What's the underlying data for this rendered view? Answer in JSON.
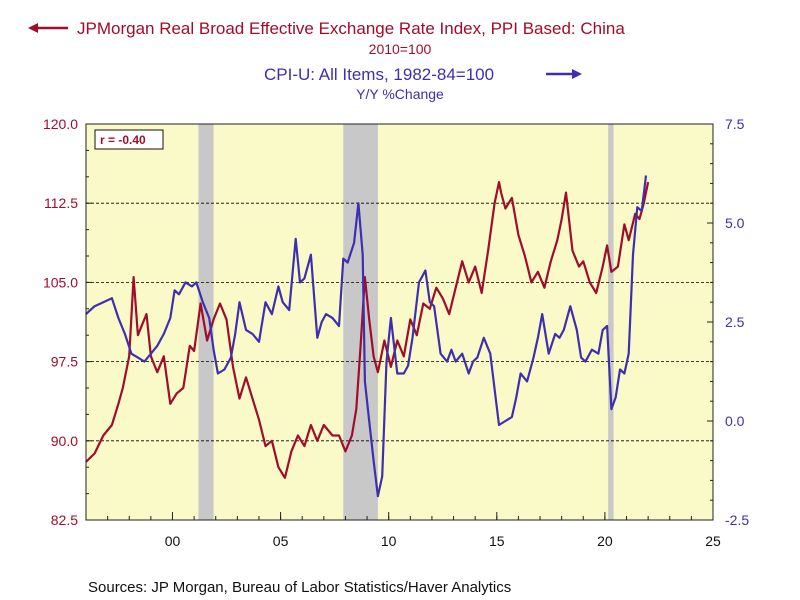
{
  "chart_data": {
    "type": "line",
    "title_left": "JPMorgan Real Broad Effective Exchange Rate Index, PPI Based: China",
    "subtitle_left": "2010=100",
    "title_right": "CPI-U: All Items, 1982-84=100",
    "subtitle_right": "Y/Y %Change",
    "correlation_label": "r = -0.40",
    "source": "Sources:  JP Morgan, Bureau of Labor Statistics/Haver Analytics",
    "x_axis": {
      "range": [
        1996,
        2025
      ],
      "ticks": [
        "00",
        "05",
        "10",
        "15",
        "20",
        "25"
      ],
      "tick_years": [
        2000,
        2005,
        2010,
        2015,
        2020,
        2025
      ]
    },
    "y_left": {
      "range": [
        82.5,
        120.0
      ],
      "ticks": [
        "82.5",
        "90.0",
        "97.5",
        "105.0",
        "112.5",
        "120.0"
      ]
    },
    "y_right": {
      "range": [
        -2.5,
        7.5
      ],
      "ticks": [
        "-2.5",
        "0.0",
        "2.5",
        "5.0",
        "7.5"
      ]
    },
    "gridlines_left": [
      90.0,
      97.5,
      105.0,
      112.5
    ],
    "recessions": [
      [
        2001.2,
        2001.9
      ],
      [
        2007.9,
        2009.5
      ],
      [
        2020.15,
        2020.4
      ]
    ],
    "colors": {
      "left_series": "#a00d2b",
      "right_series": "#3e2fb0",
      "plot_bg": "#fafac8",
      "recession": "#c8c8c8"
    },
    "series": [
      {
        "name": "JPMorgan Real Broad Effective Exchange Rate Index, PPI Based: China",
        "axis": "left",
        "points": [
          [
            1996.0,
            88.0
          ],
          [
            1996.4,
            88.8
          ],
          [
            1996.8,
            90.5
          ],
          [
            1997.2,
            91.5
          ],
          [
            1997.5,
            93.5
          ],
          [
            1997.7,
            95.0
          ],
          [
            1998.0,
            98.0
          ],
          [
            1998.2,
            105.5
          ],
          [
            1998.4,
            100.0
          ],
          [
            1998.6,
            101.0
          ],
          [
            1998.8,
            102.0
          ],
          [
            1999.0,
            98.0
          ],
          [
            1999.3,
            96.5
          ],
          [
            1999.6,
            98.0
          ],
          [
            1999.9,
            93.5
          ],
          [
            2000.2,
            94.5
          ],
          [
            2000.5,
            95.0
          ],
          [
            2000.8,
            99.0
          ],
          [
            2001.0,
            98.5
          ],
          [
            2001.3,
            103.0
          ],
          [
            2001.6,
            99.5
          ],
          [
            2001.9,
            101.5
          ],
          [
            2002.2,
            103.0
          ],
          [
            2002.5,
            101.5
          ],
          [
            2002.8,
            97.0
          ],
          [
            2003.1,
            94.0
          ],
          [
            2003.4,
            96.0
          ],
          [
            2003.7,
            94.0
          ],
          [
            2004.0,
            92.0
          ],
          [
            2004.3,
            89.5
          ],
          [
            2004.6,
            90.0
          ],
          [
            2004.9,
            87.5
          ],
          [
            2005.2,
            86.5
          ],
          [
            2005.5,
            89.0
          ],
          [
            2005.8,
            90.5
          ],
          [
            2006.1,
            89.5
          ],
          [
            2006.4,
            91.5
          ],
          [
            2006.7,
            90.0
          ],
          [
            2007.0,
            91.5
          ],
          [
            2007.4,
            90.5
          ],
          [
            2007.7,
            90.5
          ],
          [
            2008.0,
            89.0
          ],
          [
            2008.3,
            90.5
          ],
          [
            2008.5,
            93.0
          ],
          [
            2008.7,
            99.0
          ],
          [
            2008.9,
            105.5
          ],
          [
            2009.1,
            101.5
          ],
          [
            2009.3,
            98.0
          ],
          [
            2009.5,
            96.5
          ],
          [
            2009.8,
            99.5
          ],
          [
            2010.1,
            97.0
          ],
          [
            2010.4,
            99.5
          ],
          [
            2010.7,
            98.0
          ],
          [
            2011.0,
            101.5
          ],
          [
            2011.3,
            100.0
          ],
          [
            2011.6,
            103.0
          ],
          [
            2011.9,
            102.5
          ],
          [
            2012.2,
            104.5
          ],
          [
            2012.5,
            103.5
          ],
          [
            2012.8,
            102.0
          ],
          [
            2013.1,
            104.5
          ],
          [
            2013.4,
            107.0
          ],
          [
            2013.7,
            105.0
          ],
          [
            2014.0,
            106.5
          ],
          [
            2014.3,
            104.0
          ],
          [
            2014.6,
            108.0
          ],
          [
            2014.9,
            112.5
          ],
          [
            2015.1,
            114.5
          ],
          [
            2015.2,
            113.5
          ],
          [
            2015.4,
            112.0
          ],
          [
            2015.7,
            113.0
          ],
          [
            2016.0,
            109.5
          ],
          [
            2016.3,
            107.5
          ],
          [
            2016.6,
            105.0
          ],
          [
            2016.9,
            106.0
          ],
          [
            2017.2,
            104.5
          ],
          [
            2017.5,
            107.0
          ],
          [
            2017.8,
            109.0
          ],
          [
            2018.0,
            111.0
          ],
          [
            2018.2,
            113.5
          ],
          [
            2018.5,
            108.0
          ],
          [
            2018.8,
            106.5
          ],
          [
            2019.0,
            107.0
          ],
          [
            2019.3,
            105.0
          ],
          [
            2019.6,
            104.0
          ],
          [
            2019.9,
            106.5
          ],
          [
            2020.1,
            108.5
          ],
          [
            2020.3,
            106.0
          ],
          [
            2020.6,
            106.5
          ],
          [
            2020.9,
            110.5
          ],
          [
            2021.1,
            109.0
          ],
          [
            2021.4,
            111.5
          ],
          [
            2021.6,
            111.0
          ],
          [
            2021.8,
            112.5
          ],
          [
            2022.0,
            114.5
          ]
        ]
      },
      {
        "name": "CPI-U: All Items, 1982-84=100 Y/Y %Change",
        "axis": "right",
        "points": [
          [
            1996.0,
            2.7
          ],
          [
            1996.4,
            2.9
          ],
          [
            1996.8,
            3.0
          ],
          [
            1997.2,
            3.1
          ],
          [
            1997.5,
            2.6
          ],
          [
            1997.8,
            2.2
          ],
          [
            1998.1,
            1.7
          ],
          [
            1998.4,
            1.6
          ],
          [
            1998.7,
            1.5
          ],
          [
            1999.0,
            1.7
          ],
          [
            1999.3,
            1.9
          ],
          [
            1999.6,
            2.2
          ],
          [
            1999.9,
            2.6
          ],
          [
            2000.1,
            3.3
          ],
          [
            2000.3,
            3.2
          ],
          [
            2000.6,
            3.5
          ],
          [
            2000.9,
            3.4
          ],
          [
            2001.1,
            3.5
          ],
          [
            2001.4,
            3.0
          ],
          [
            2001.7,
            2.6
          ],
          [
            2001.9,
            1.8
          ],
          [
            2002.1,
            1.2
          ],
          [
            2002.4,
            1.3
          ],
          [
            2002.7,
            1.6
          ],
          [
            2002.9,
            2.2
          ],
          [
            2003.1,
            3.0
          ],
          [
            2003.4,
            2.3
          ],
          [
            2003.7,
            2.2
          ],
          [
            2004.0,
            2.0
          ],
          [
            2004.3,
            3.0
          ],
          [
            2004.6,
            2.7
          ],
          [
            2004.9,
            3.4
          ],
          [
            2005.1,
            3.0
          ],
          [
            2005.4,
            2.8
          ],
          [
            2005.7,
            4.6
          ],
          [
            2005.9,
            3.5
          ],
          [
            2006.1,
            3.6
          ],
          [
            2006.4,
            4.2
          ],
          [
            2006.7,
            2.1
          ],
          [
            2006.9,
            2.5
          ],
          [
            2007.1,
            2.7
          ],
          [
            2007.4,
            2.6
          ],
          [
            2007.7,
            2.4
          ],
          [
            2007.9,
            4.1
          ],
          [
            2008.1,
            4.0
          ],
          [
            2008.4,
            4.5
          ],
          [
            2008.6,
            5.5
          ],
          [
            2008.8,
            4.2
          ],
          [
            2008.9,
            1.0
          ],
          [
            2009.1,
            0.0
          ],
          [
            2009.3,
            -1.0
          ],
          [
            2009.5,
            -1.9
          ],
          [
            2009.7,
            -1.4
          ],
          [
            2009.9,
            1.5
          ],
          [
            2010.1,
            2.6
          ],
          [
            2010.4,
            1.2
          ],
          [
            2010.7,
            1.2
          ],
          [
            2010.9,
            1.4
          ],
          [
            2011.1,
            2.1
          ],
          [
            2011.4,
            3.5
          ],
          [
            2011.7,
            3.8
          ],
          [
            2011.9,
            3.0
          ],
          [
            2012.1,
            2.9
          ],
          [
            2012.4,
            1.7
          ],
          [
            2012.7,
            1.5
          ],
          [
            2012.9,
            1.8
          ],
          [
            2013.1,
            1.5
          ],
          [
            2013.4,
            1.7
          ],
          [
            2013.7,
            1.2
          ],
          [
            2013.9,
            1.5
          ],
          [
            2014.1,
            1.6
          ],
          [
            2014.4,
            2.1
          ],
          [
            2014.7,
            1.7
          ],
          [
            2014.9,
            0.8
          ],
          [
            2015.1,
            -0.1
          ],
          [
            2015.4,
            0.0
          ],
          [
            2015.7,
            0.1
          ],
          [
            2015.9,
            0.6
          ],
          [
            2016.1,
            1.2
          ],
          [
            2016.4,
            1.0
          ],
          [
            2016.7,
            1.6
          ],
          [
            2016.9,
            2.1
          ],
          [
            2017.1,
            2.7
          ],
          [
            2017.4,
            1.7
          ],
          [
            2017.7,
            2.2
          ],
          [
            2017.9,
            2.1
          ],
          [
            2018.1,
            2.3
          ],
          [
            2018.4,
            2.9
          ],
          [
            2018.7,
            2.3
          ],
          [
            2018.9,
            1.6
          ],
          [
            2019.1,
            1.5
          ],
          [
            2019.4,
            1.8
          ],
          [
            2019.7,
            1.7
          ],
          [
            2019.9,
            2.3
          ],
          [
            2020.1,
            2.4
          ],
          [
            2020.3,
            0.3
          ],
          [
            2020.5,
            0.6
          ],
          [
            2020.7,
            1.3
          ],
          [
            2020.9,
            1.2
          ],
          [
            2021.1,
            1.7
          ],
          [
            2021.3,
            4.2
          ],
          [
            2021.5,
            5.4
          ],
          [
            2021.7,
            5.3
          ],
          [
            2021.9,
            6.2
          ]
        ]
      }
    ]
  }
}
